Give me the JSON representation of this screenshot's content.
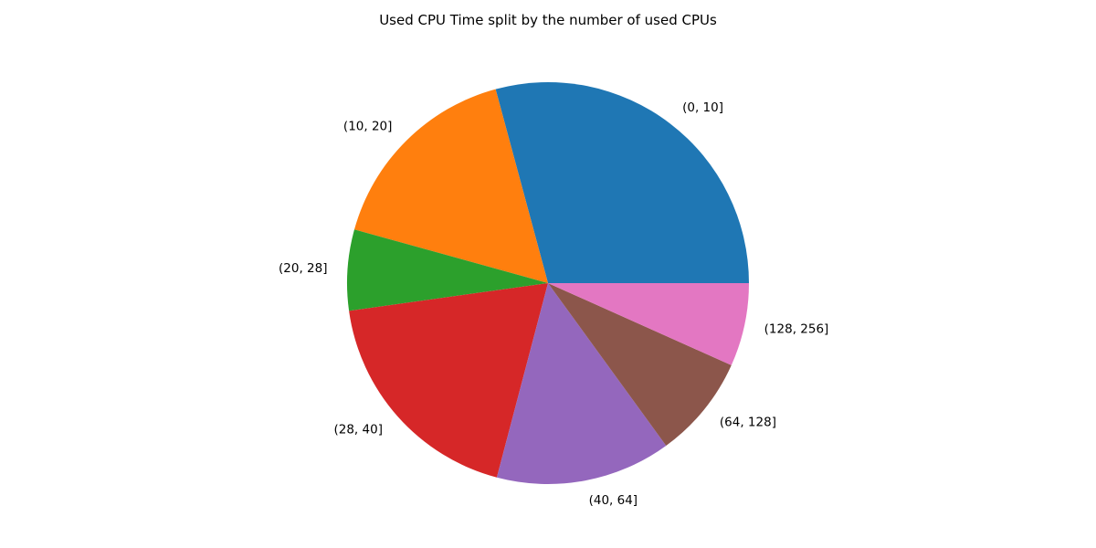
{
  "chart_data": {
    "type": "pie",
    "title": "Used CPU Time split by the number of used CPUs",
    "labels": [
      "(0, 10]",
      "(10, 20]",
      "(20, 28]",
      "(28, 40]",
      "(40, 64]",
      "(64, 128]",
      "(128, 256]"
    ],
    "values": [
      29.2,
      16.5,
      6.5,
      18.7,
      14.1,
      8.3,
      6.7
    ],
    "colors": [
      "#1f77b4",
      "#ff7f0e",
      "#2ca02c",
      "#d62728",
      "#9467bd",
      "#8c564b",
      "#e377c2"
    ],
    "start_angle_deg": 0,
    "direction": "counterclockwise",
    "legend": "none"
  }
}
